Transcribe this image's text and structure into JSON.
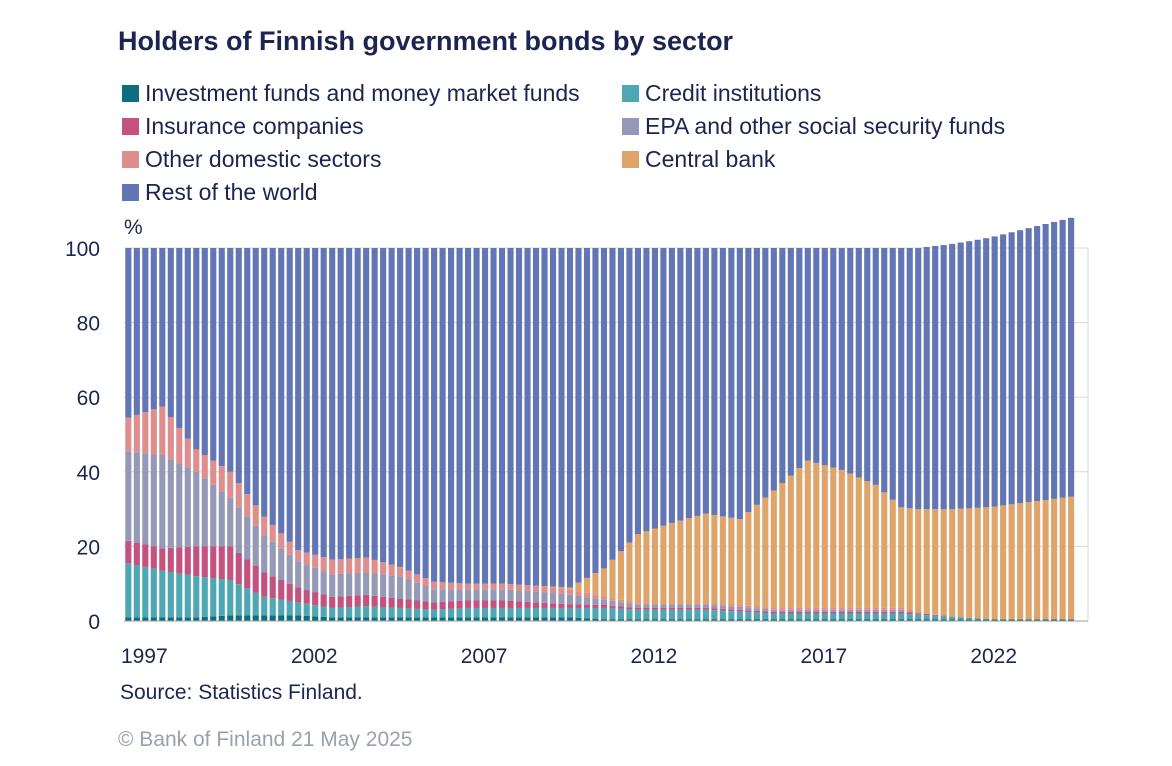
{
  "chart_data": {
    "type": "bar",
    "stacked": true,
    "percent": true,
    "title": "Holders of Finnish government bonds by sector",
    "ylabel": "%",
    "source": "Source: Statistics Finland.",
    "copyright": "© Bank of Finland 21 May 2025",
    "ylim": [
      0,
      100
    ],
    "yticks": [
      0,
      20,
      40,
      60,
      80,
      100
    ],
    "xticks": [
      "1997",
      "2002",
      "2007",
      "2012",
      "2017",
      "2022"
    ],
    "frequency": "quarterly",
    "start": "1997 Q1",
    "end": "2024 Q4",
    "grid": true,
    "legend_position": "top",
    "anchors": [
      {
        "q": 0,
        "inv": 1.0,
        "cred": 14.5,
        "ins": 6.0,
        "epa": 24.0,
        "oth": 9.0,
        "cb": 0
      },
      {
        "q": 4,
        "inv": 1.0,
        "cred": 12.5,
        "ins": 6.0,
        "epa": 25.0,
        "oth": 13.0,
        "cb": 0
      },
      {
        "q": 8,
        "inv": 1.0,
        "cred": 11.0,
        "ins": 8.0,
        "epa": 20.0,
        "oth": 6.0,
        "cb": 0
      },
      {
        "q": 12,
        "inv": 1.5,
        "cred": 9.5,
        "ins": 9.0,
        "epa": 13.0,
        "oth": 7.0,
        "cb": 0
      },
      {
        "q": 16,
        "inv": 1.5,
        "cred": 5.0,
        "ins": 6.5,
        "epa": 10.0,
        "oth": 5.0,
        "cb": 0
      },
      {
        "q": 20,
        "inv": 1.5,
        "cred": 3.5,
        "ins": 4.0,
        "epa": 7.0,
        "oth": 3.0,
        "cb": 0
      },
      {
        "q": 24,
        "inv": 1.0,
        "cred": 2.5,
        "ins": 3.0,
        "epa": 6.0,
        "oth": 4.0,
        "cb": 0
      },
      {
        "q": 28,
        "inv": 1.0,
        "cred": 3.0,
        "ins": 3.0,
        "epa": 6.0,
        "oth": 4.0,
        "cb": 0
      },
      {
        "q": 32,
        "inv": 1.0,
        "cred": 2.5,
        "ins": 2.5,
        "epa": 6.0,
        "oth": 2.5,
        "cb": 0
      },
      {
        "q": 36,
        "inv": 1.0,
        "cred": 2.0,
        "ins": 2.0,
        "epa": 3.5,
        "oth": 2.0,
        "cb": 0
      },
      {
        "q": 40,
        "inv": 1.0,
        "cred": 2.5,
        "ins": 2.0,
        "epa": 3.0,
        "oth": 1.5,
        "cb": 0
      },
      {
        "q": 44,
        "inv": 1.0,
        "cred": 2.5,
        "ins": 2.0,
        "epa": 3.0,
        "oth": 1.5,
        "cb": 0
      },
      {
        "q": 48,
        "inv": 1.0,
        "cred": 2.5,
        "ins": 1.5,
        "epa": 3.0,
        "oth": 1.5,
        "cb": 0
      },
      {
        "q": 52,
        "inv": 1.0,
        "cred": 2.5,
        "ins": 1.0,
        "epa": 2.5,
        "oth": 1.5,
        "cb": 0.5
      },
      {
        "q": 56,
        "inv": 0.5,
        "cred": 3.0,
        "ins": 0.8,
        "epa": 1.5,
        "oth": 0.8,
        "cb": 7.5
      },
      {
        "q": 60,
        "inv": 0.5,
        "cred": 2.5,
        "ins": 0.5,
        "epa": 0.8,
        "oth": 0.5,
        "cb": 18.5
      },
      {
        "q": 64,
        "inv": 0.5,
        "cred": 2.5,
        "ins": 0.5,
        "epa": 0.8,
        "oth": 0.5,
        "cb": 21.5
      },
      {
        "q": 68,
        "inv": 0.5,
        "cred": 2.5,
        "ins": 0.5,
        "epa": 0.8,
        "oth": 0.5,
        "cb": 24.0
      },
      {
        "q": 72,
        "inv": 0.5,
        "cred": 2.0,
        "ins": 0.5,
        "epa": 0.8,
        "oth": 0.5,
        "cb": 23.0
      },
      {
        "q": 76,
        "inv": 0.5,
        "cred": 1.5,
        "ins": 0.5,
        "epa": 0.5,
        "oth": 0.5,
        "cb": 31.5
      },
      {
        "q": 80,
        "inv": 0.5,
        "cred": 1.5,
        "ins": 0.5,
        "epa": 0.5,
        "oth": 0.5,
        "cb": 39.5
      },
      {
        "q": 84,
        "inv": 0.5,
        "cred": 1.5,
        "ins": 0.5,
        "epa": 0.5,
        "oth": 0.5,
        "cb": 37.0
      },
      {
        "q": 88,
        "inv": 0.5,
        "cred": 1.5,
        "ins": 0.5,
        "epa": 0.5,
        "oth": 0.5,
        "cb": 33.0
      },
      {
        "q": 91,
        "inv": 0.5,
        "cred": 1.5,
        "ins": 0.5,
        "epa": 0.5,
        "oth": 0.5,
        "cb": 27.0
      }
    ],
    "series": [
      {
        "key": "inv",
        "name": "Investment funds and money market funds",
        "color": "#0e6e7d"
      },
      {
        "key": "cred",
        "name": "Credit institutions",
        "color": "#4fa7b3"
      },
      {
        "key": "ins",
        "name": "Insurance companies",
        "color": "#c4527e"
      },
      {
        "key": "epa",
        "name": "EPA and other social security funds",
        "color": "#9399b6"
      },
      {
        "key": "oth",
        "name": "Other domestic sectors",
        "color": "#df8e8e"
      },
      {
        "key": "cb",
        "name": "Central bank",
        "color": "#dea46a"
      },
      {
        "key": "row",
        "name": "Rest of the world",
        "color": "#6276b6"
      }
    ]
  }
}
